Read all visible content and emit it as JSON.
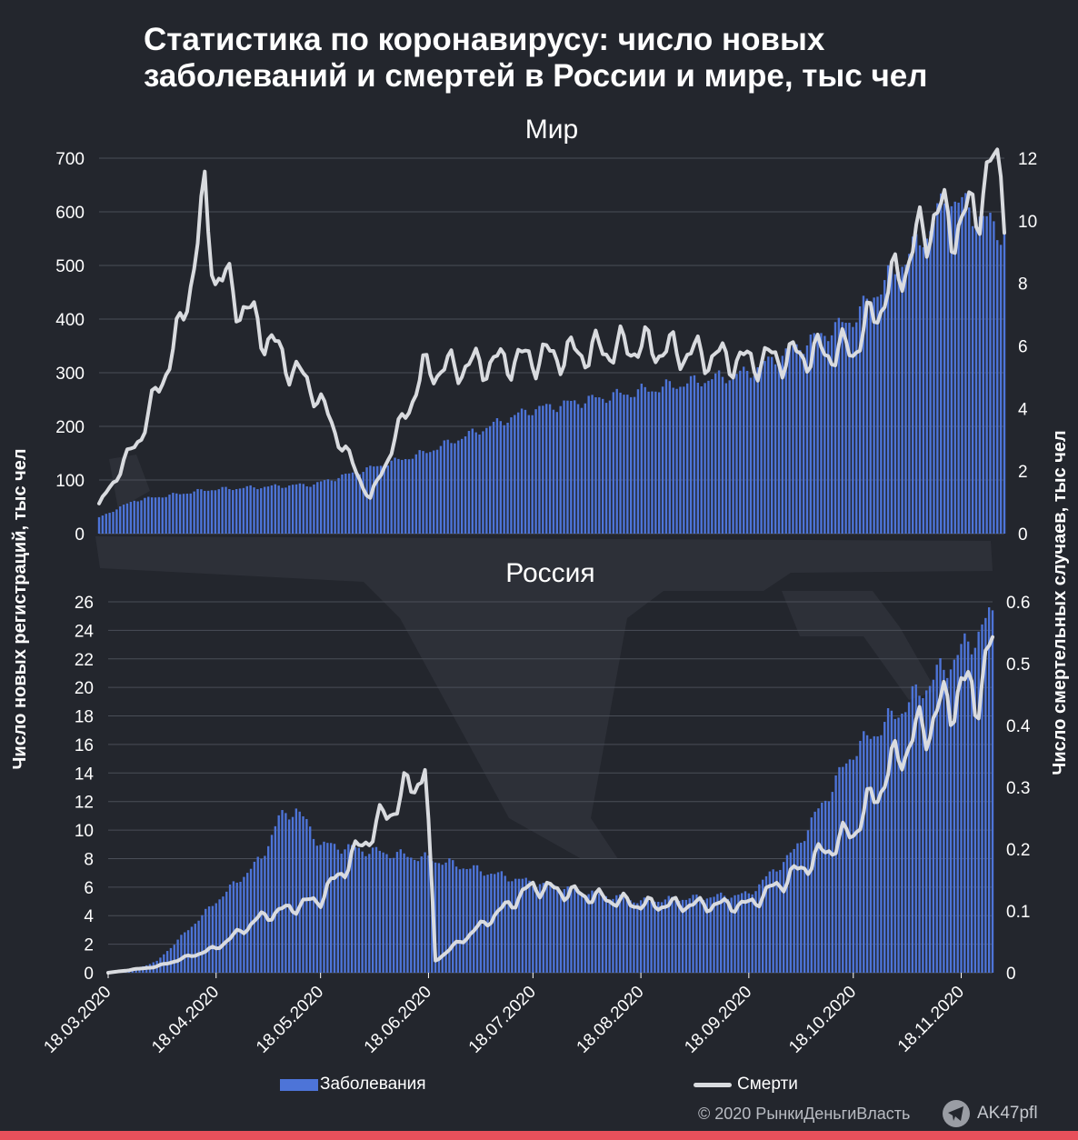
{
  "title": "Статистика по коронавирусу: число новых заболеваний и смертей в России и мире, тыс чел",
  "legend": {
    "cases": "Заболевания",
    "deaths": "Смерти"
  },
  "copyright": "© 2020  РынкиДеньгиВласть",
  "telegram": {
    "icon": "telegram-icon",
    "handle": "AK47pfl"
  },
  "colors": {
    "background": "#23262d",
    "bars": "#4d74d8",
    "line": "#d9dbdf",
    "accent_strip": "#e8505b"
  },
  "chart_data": [
    {
      "type": "bar+line",
      "title": "Мир",
      "x_start": "2020-03-18",
      "x_end": "2020-11-30",
      "left_axis": {
        "label": "Число новых регистраций, тыс чел",
        "range": [
          0,
          700
        ],
        "ticks": [
          0,
          100,
          200,
          300,
          400,
          500,
          600,
          700
        ]
      },
      "right_axis": {
        "label": "Число смертельных случаев, тыс чел",
        "range": [
          0,
          12
        ],
        "ticks": [
          0,
          2,
          4,
          6,
          8,
          10,
          12
        ]
      },
      "grid": true,
      "series": [
        {
          "name": "Заболевания",
          "kind": "bar",
          "axis": "left",
          "keyframes": [
            [
              "2020-03-18",
              30
            ],
            [
              "2020-03-28",
              62
            ],
            [
              "2020-04-18",
              82
            ],
            [
              "2020-05-18",
              92
            ],
            [
              "2020-06-18",
              150
            ],
            [
              "2020-07-18",
              230
            ],
            [
              "2020-08-18",
              265
            ],
            [
              "2020-09-18",
              300
            ],
            [
              "2020-10-18",
              400
            ],
            [
              "2020-11-08",
              560
            ],
            [
              "2020-11-14",
              630
            ],
            [
              "2020-11-30",
              560
            ]
          ]
        },
        {
          "name": "Смерти",
          "kind": "line",
          "axis": "right",
          "keyframes": [
            [
              "2020-03-18",
              0.9
            ],
            [
              "2020-03-30",
              3.2
            ],
            [
              "2020-04-10",
              6.5
            ],
            [
              "2020-04-17",
              10.5
            ],
            [
              "2020-04-20",
              8.4
            ],
            [
              "2020-05-10",
              5.5
            ],
            [
              "2020-05-18",
              4.6
            ],
            [
              "2020-06-03",
              1.1
            ],
            [
              "2020-06-18",
              5.2
            ],
            [
              "2020-07-18",
              5.6
            ],
            [
              "2020-08-18",
              6.0
            ],
            [
              "2020-09-18",
              5.5
            ],
            [
              "2020-10-18",
              5.9
            ],
            [
              "2020-11-01",
              8.5
            ],
            [
              "2020-11-10",
              10.2
            ],
            [
              "2020-11-18",
              9.8
            ],
            [
              "2020-11-29",
              12.0
            ],
            [
              "2020-11-30",
              10.9
            ]
          ]
        }
      ]
    },
    {
      "type": "bar+line",
      "title": "Россия",
      "x_start": "2020-03-18",
      "x_end": "2020-11-27",
      "left_axis": {
        "range": [
          0,
          26
        ],
        "ticks": [
          0,
          2,
          4,
          6,
          8,
          10,
          12,
          14,
          16,
          18,
          20,
          22,
          24,
          26
        ]
      },
      "right_axis": {
        "range": [
          0,
          0.6
        ],
        "ticks": [
          "0",
          "0.1",
          "0.2",
          "0.3",
          "0.4",
          "0.5",
          "0.6"
        ]
      },
      "x_ticks": [
        "18.03.2020",
        "18.04.2020",
        "18.05.2020",
        "18.06.2020",
        "18.07.2020",
        "18.08.2020",
        "18.09.2020",
        "18.10.2020",
        "18.11.2020"
      ],
      "grid": true,
      "series": [
        {
          "name": "Заболевания",
          "kind": "bar",
          "axis": "left",
          "keyframes": [
            [
              "2020-03-18",
              0.1
            ],
            [
              "2020-03-25",
              0.2
            ],
            [
              "2020-04-01",
              0.8
            ],
            [
              "2020-04-18",
              5.0
            ],
            [
              "2020-05-01",
              8.0
            ],
            [
              "2020-05-06",
              10.8
            ],
            [
              "2020-05-11",
              11.5
            ],
            [
              "2020-05-18",
              9.0
            ],
            [
              "2020-06-18",
              8.0
            ],
            [
              "2020-07-18",
              6.3
            ],
            [
              "2020-08-18",
              5.0
            ],
            [
              "2020-09-18",
              5.5
            ],
            [
              "2020-10-01",
              8.5
            ],
            [
              "2020-10-18",
              15.5
            ],
            [
              "2020-11-01",
              18.5
            ],
            [
              "2020-11-18",
              22.5
            ],
            [
              "2020-11-27",
              25.0
            ]
          ]
        },
        {
          "name": "Смерти",
          "kind": "line",
          "axis": "right",
          "keyframes": [
            [
              "2020-03-18",
              0.0
            ],
            [
              "2020-04-01",
              0.01
            ],
            [
              "2020-04-18",
              0.04
            ],
            [
              "2020-05-01",
              0.09
            ],
            [
              "2020-05-18",
              0.12
            ],
            [
              "2020-06-02",
              0.23
            ],
            [
              "2020-06-17",
              0.33
            ],
            [
              "2020-06-20",
              0.02
            ],
            [
              "2020-07-18",
              0.14
            ],
            [
              "2020-08-18",
              0.11
            ],
            [
              "2020-09-18",
              0.11
            ],
            [
              "2020-10-01",
              0.16
            ],
            [
              "2020-10-18",
              0.23
            ],
            [
              "2020-11-01",
              0.36
            ],
            [
              "2020-11-18",
              0.46
            ],
            [
              "2020-11-22",
              0.45
            ],
            [
              "2020-11-27",
              0.52
            ]
          ]
        }
      ]
    }
  ]
}
